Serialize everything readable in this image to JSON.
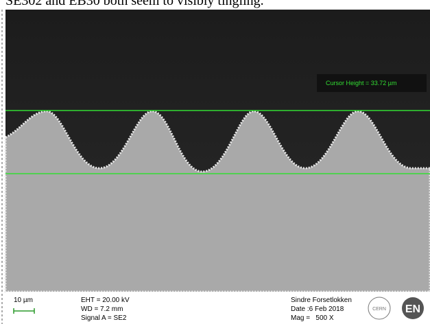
{
  "caption": "SE302 and EB30 both seem to visibly tingling.",
  "cursor_label": "Cursor Height = 33.72 µm",
  "info_bar": {
    "scale": "10 µm",
    "eht": "EHT = 20.00 kV",
    "wd": "WD = 7.2 mm",
    "signal": "Signal A = SE2",
    "operator": "Sindre Forsetlokken",
    "date": "Date :6 Feb 2018",
    "mag": "Mag =   500 X",
    "logo_left": "CERN",
    "logo_right": "EN"
  }
}
